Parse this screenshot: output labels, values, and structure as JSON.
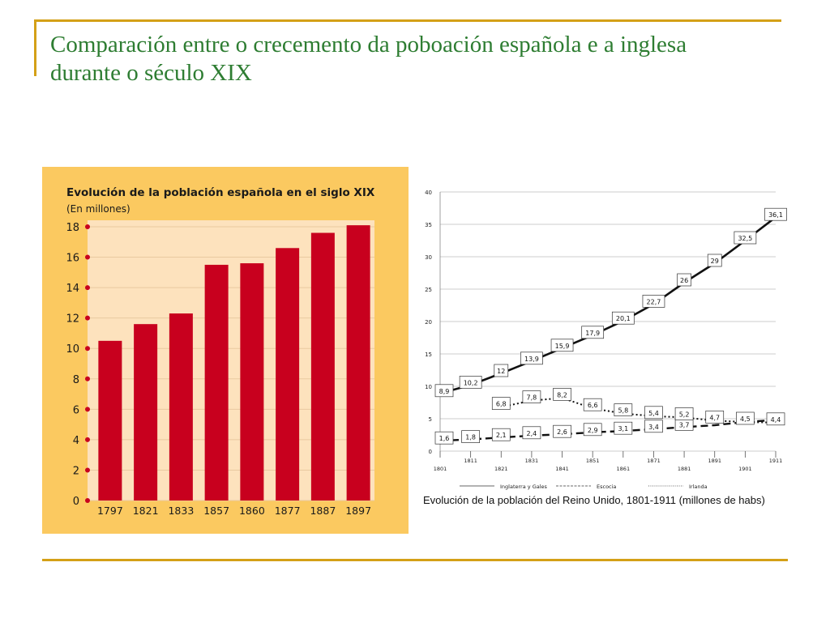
{
  "slide": {
    "title_line1": "Comparación entre o crecemento da poboación española e a inglesa",
    "title_line2": "durante o século XIX"
  },
  "chart_data": [
    {
      "type": "bar",
      "title": "Evolución de la población española en el siglo XIX",
      "subtitle": "(En millones)",
      "categories": [
        "1797",
        "1821",
        "1833",
        "1857",
        "1860",
        "1877",
        "1887",
        "1897"
      ],
      "values": [
        10.5,
        11.6,
        12.3,
        15.5,
        15.6,
        16.6,
        17.6,
        18.1
      ],
      "ylim": [
        0,
        18
      ],
      "yticks": [
        0,
        2,
        4,
        6,
        8,
        10,
        12,
        14,
        16,
        18
      ],
      "colors": {
        "bar": "#c8001e",
        "background": "#fbc960",
        "plot": "#fde2bd",
        "axis_dot": "#c8001e"
      }
    },
    {
      "type": "line",
      "title": "Evolución de la población del Reino Unido, 1801-1911 (millones de habs)",
      "x": [
        "1801",
        "1811",
        "1821",
        "1831",
        "1841",
        "1851",
        "1861",
        "1871",
        "1881",
        "1891",
        "1901",
        "1911"
      ],
      "ylim": [
        0,
        40
      ],
      "yticks": [
        0,
        5,
        10,
        15,
        20,
        25,
        30,
        35,
        40
      ],
      "grid": true,
      "legend": "bottom",
      "series": [
        {
          "name": "Inglaterra y Gales",
          "style": "solid",
          "values": [
            8.9,
            10.2,
            12,
            13.9,
            15.9,
            17.9,
            20.1,
            22.7,
            26,
            29,
            32.5,
            36.1
          ],
          "labels": [
            "8,9",
            "10,2",
            "12",
            "13,9",
            "15,9",
            "17,9",
            "20,1",
            "22,7",
            "26",
            "29",
            "32,5",
            "36,1"
          ]
        },
        {
          "name": "Escocia",
          "style": "dashed",
          "values": [
            1.6,
            1.8,
            2.1,
            2.4,
            2.6,
            2.9,
            3.1,
            3.4,
            3.7,
            4.0,
            4.5,
            4.8
          ],
          "labels": [
            "1,6",
            "1,8",
            "2,1",
            "2,4",
            "2,6",
            "2,9",
            "3,1",
            "3,4",
            "3,7",
            "",
            "",
            ""
          ]
        },
        {
          "name": "Irlanda",
          "style": "dotted",
          "values": [
            null,
            null,
            6.8,
            7.8,
            8.2,
            6.6,
            5.8,
            5.4,
            5.2,
            4.7,
            4.5,
            4.4
          ],
          "labels": [
            "",
            "",
            "6,8",
            "7,8",
            "8,2",
            "6,6",
            "5,8",
            "5,4",
            "5,2",
            "4,7",
            "4,5",
            "4,4"
          ]
        }
      ]
    }
  ]
}
